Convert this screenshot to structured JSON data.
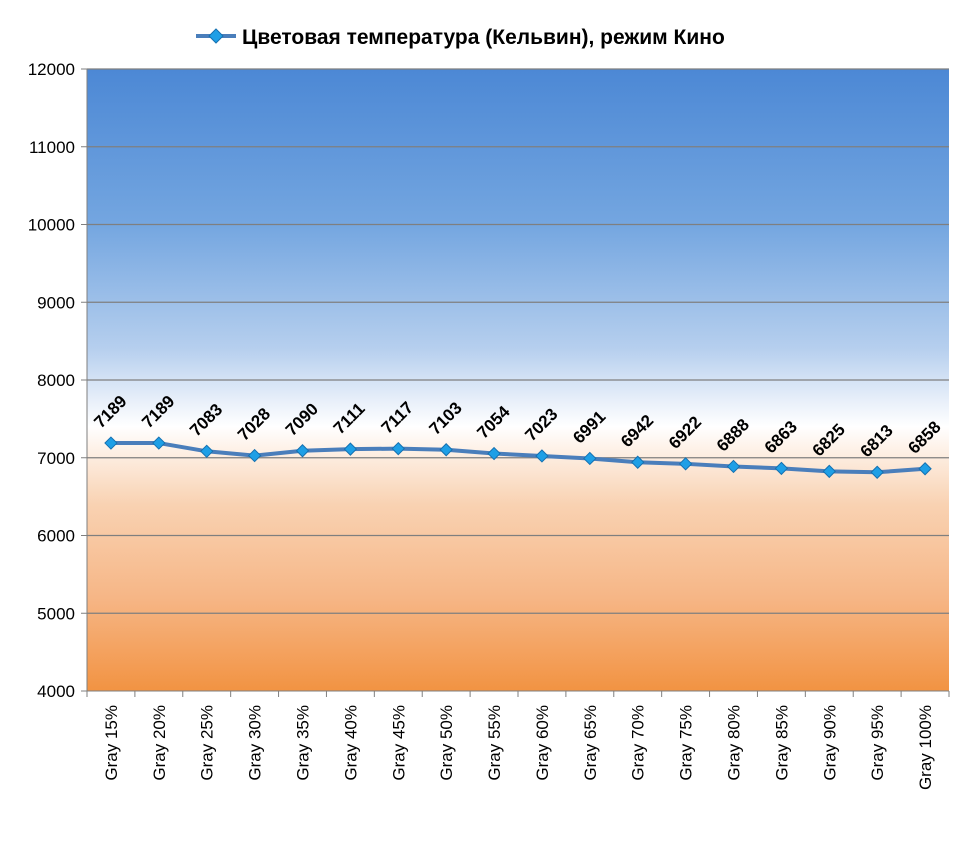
{
  "chart_data": {
    "type": "line",
    "title": "Цветовая температура (Кельвин), режим Кино",
    "categories": [
      "Gray 15%",
      "Gray 20%",
      "Gray 25%",
      "Gray 30%",
      "Gray 35%",
      "Gray 40%",
      "Gray 45%",
      "Gray 50%",
      "Gray 55%",
      "Gray 60%",
      "Gray 65%",
      "Gray 70%",
      "Gray 75%",
      "Gray 80%",
      "Gray 85%",
      "Gray 90%",
      "Gray 95%",
      "Gray 100%"
    ],
    "series": [
      {
        "name": "Цветовая температура (Кельвин), режим Кино",
        "values": [
          7189,
          7189,
          7083,
          7028,
          7090,
          7111,
          7117,
          7103,
          7054,
          7023,
          6991,
          6942,
          6922,
          6888,
          6863,
          6825,
          6813,
          6858
        ],
        "color": "#4a7ebb",
        "marker_color": "#1e9fe6"
      }
    ],
    "ylim": [
      4000,
      12000
    ],
    "yticks": [
      "4000",
      "5000",
      "6000",
      "7000",
      "8000",
      "9000",
      "10000",
      "11000",
      "12000"
    ],
    "grid": true,
    "legend_position": "top-center",
    "background_gradient": [
      "#4e8ad6",
      "#b7d0ee",
      "#ffffff",
      "#f8cfa8",
      "#f29040"
    ]
  }
}
